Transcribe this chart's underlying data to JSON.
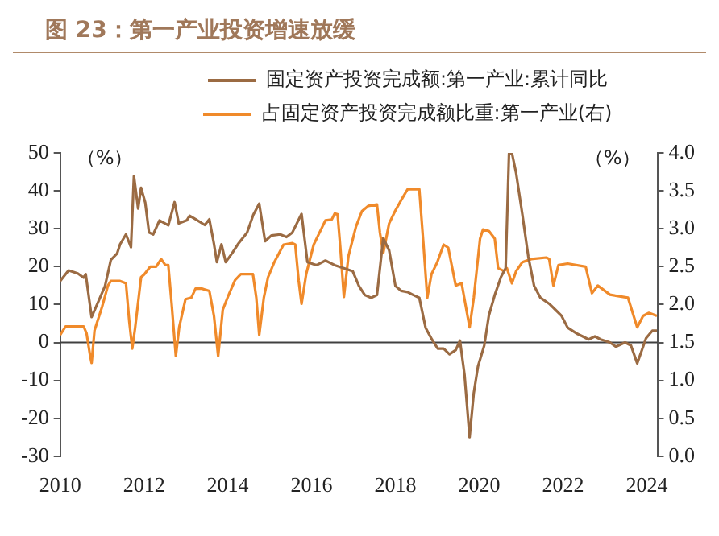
{
  "chart_data": {
    "type": "line",
    "title": "图 23：第一产业投资增速放缓",
    "ylabel": "（%）",
    "y2label": "（%）",
    "legend": "top",
    "grid": false,
    "marker": "none",
    "line_style": "solid",
    "xlim": [
      2010,
      2024.25
    ],
    "xticks": [
      2010,
      2012,
      2014,
      2016,
      2018,
      2020,
      2022,
      2024
    ],
    "ylim": [
      -30,
      50
    ],
    "yticks": [
      -30,
      -20,
      -10,
      0,
      10,
      20,
      30,
      40,
      50
    ],
    "y2lim": [
      0,
      4
    ],
    "y2ticks": [
      {
        "value": 0,
        "label": "0.0"
      },
      0.5,
      {
        "value": 1,
        "label": "1.0"
      },
      1.5,
      {
        "value": 2,
        "label": "2.0"
      },
      2.5,
      {
        "value": 3,
        "label": "3.0"
      },
      3.5,
      {
        "value": 4,
        "label": "4.0"
      }
    ],
    "ref_lines": [
      {
        "axis": "y",
        "value": 0,
        "color": "#404040"
      }
    ],
    "series": [
      {
        "name": "固定资产投资完成额:第一产业:累计同比",
        "color": "#9b6b43",
        "x": [
          2010.0,
          2010.2,
          2010.42,
          2010.56,
          2010.61,
          2010.75,
          2010.92,
          2011.07,
          2011.21,
          2011.36,
          2011.43,
          2011.57,
          2011.69,
          2011.76,
          2011.86,
          2011.93,
          2012.03,
          2012.12,
          2012.22,
          2012.37,
          2012.58,
          2012.73,
          2012.83,
          2013.02,
          2013.09,
          2013.23,
          2013.45,
          2013.56,
          2013.67,
          2013.74,
          2013.85,
          2013.95,
          2014.1,
          2014.24,
          2014.46,
          2014.61,
          2014.75,
          2014.89,
          2015.04,
          2015.25,
          2015.4,
          2015.54,
          2015.76,
          2015.9,
          2016.12,
          2016.33,
          2016.55,
          2016.77,
          2016.98,
          2017.13,
          2017.27,
          2017.42,
          2017.56,
          2017.71,
          2017.85,
          2018.0,
          2018.14,
          2018.29,
          2018.43,
          2018.57,
          2018.72,
          2018.87,
          2019.01,
          2019.15,
          2019.29,
          2019.44,
          2019.54,
          2019.65,
          2019.77,
          2019.87,
          2019.97,
          2020.12,
          2020.23,
          2020.37,
          2020.52,
          2020.63,
          2020.71,
          2020.78,
          2020.88,
          2021.03,
          2021.17,
          2021.31,
          2021.46,
          2021.67,
          2021.82,
          2021.96,
          2022.11,
          2022.32,
          2022.47,
          2022.61,
          2022.76,
          2022.9,
          2023.12,
          2023.26,
          2023.48,
          2023.62,
          2023.77,
          2023.87,
          2023.98,
          2024.13,
          2024.24
        ],
        "values": [
          16.2,
          19.0,
          18.2,
          17.1,
          18.0,
          6.7,
          11.0,
          14.9,
          21.8,
          23.5,
          25.9,
          28.5,
          25.1,
          43.9,
          35.3,
          40.8,
          36.9,
          29.0,
          28.5,
          32.2,
          30.9,
          37.0,
          31.4,
          32.2,
          33.4,
          32.5,
          31.0,
          32.5,
          26.0,
          21.2,
          25.9,
          21.2,
          23.5,
          25.9,
          29.0,
          33.7,
          36.6,
          26.7,
          28.2,
          28.5,
          27.8,
          29.0,
          33.9,
          21.2,
          20.4,
          21.6,
          20.4,
          19.6,
          18.8,
          14.9,
          12.5,
          11.8,
          12.5,
          27.5,
          24.3,
          14.9,
          13.6,
          13.3,
          12.5,
          11.8,
          3.9,
          0.8,
          -1.6,
          -1.6,
          -3.1,
          -2.0,
          0.5,
          -8.6,
          -25.0,
          -13.3,
          -6.3,
          -0.8,
          7.1,
          12.5,
          17.3,
          19.6,
          49.8,
          50,
          44.7,
          33.7,
          22.7,
          14.9,
          11.8,
          10.2,
          8.6,
          7.1,
          3.9,
          2.4,
          1.6,
          0.8,
          1.6,
          0.8,
          0,
          -1.1,
          0,
          -0.8,
          -5.5,
          -2.4,
          1.1,
          3.1,
          3.1
        ]
      },
      {
        "name": "占固定资产投资完成额比重:第一产业(右)",
        "color": "#f08a2a",
        "axis": "y2",
        "x": [
          2010.0,
          2010.13,
          2010.56,
          2010.63,
          2010.71,
          2010.75,
          2010.82,
          2011.0,
          2011.14,
          2011.21,
          2011.43,
          2011.57,
          2011.65,
          2011.72,
          2011.79,
          2011.93,
          2012.01,
          2012.15,
          2012.29,
          2012.41,
          2012.51,
          2012.58,
          2012.66,
          2012.76,
          2012.84,
          2012.99,
          2013.13,
          2013.23,
          2013.38,
          2013.56,
          2013.67,
          2013.77,
          2013.88,
          2014.0,
          2014.17,
          2014.31,
          2014.6,
          2014.68,
          2014.75,
          2014.86,
          2014.96,
          2015.11,
          2015.33,
          2015.54,
          2015.61,
          2015.69,
          2015.76,
          2015.87,
          2016.05,
          2016.19,
          2016.33,
          2016.48,
          2016.55,
          2016.62,
          2016.69,
          2016.77,
          2016.88,
          2017.06,
          2017.2,
          2017.35,
          2017.56,
          2017.63,
          2017.71,
          2017.85,
          2017.99,
          2018.14,
          2018.29,
          2018.57,
          2018.67,
          2018.76,
          2018.86,
          2019.0,
          2019.15,
          2019.26,
          2019.44,
          2019.58,
          2019.77,
          2019.87,
          2020.02,
          2020.09,
          2020.23,
          2020.37,
          2020.45,
          2020.59,
          2020.66,
          2020.78,
          2020.88,
          2021.03,
          2021.24,
          2021.6,
          2021.67,
          2021.77,
          2021.89,
          2022.11,
          2022.54,
          2022.69,
          2022.83,
          2023.12,
          2023.55,
          2023.77,
          2023.91,
          2024.05,
          2024.24
        ],
        "values": [
          1.6,
          1.71,
          1.71,
          1.62,
          1.34,
          1.23,
          1.66,
          1.97,
          2.25,
          2.31,
          2.31,
          2.28,
          1.77,
          1.42,
          1.7,
          2.36,
          2.4,
          2.5,
          2.5,
          2.6,
          2.52,
          2.52,
          2.01,
          1.32,
          1.7,
          2.07,
          2.09,
          2.21,
          2.21,
          2.18,
          1.85,
          1.32,
          1.93,
          2.1,
          2.32,
          2.4,
          2.4,
          2.09,
          1.6,
          2.09,
          2.36,
          2.56,
          2.79,
          2.81,
          2.79,
          2.32,
          2.01,
          2.4,
          2.79,
          2.95,
          3.11,
          3.12,
          3.2,
          3.19,
          2.72,
          2.1,
          2.64,
          3.03,
          3.23,
          3.3,
          3.32,
          2.95,
          2.68,
          3.07,
          3.23,
          3.38,
          3.52,
          3.52,
          2.79,
          2.09,
          2.4,
          2.56,
          2.79,
          2.75,
          2.25,
          2.28,
          1.7,
          2.09,
          2.87,
          2.99,
          2.97,
          2.87,
          2.48,
          2.44,
          2.48,
          2.28,
          2.44,
          2.56,
          2.6,
          2.62,
          2.6,
          2.25,
          2.52,
          2.54,
          2.5,
          2.15,
          2.25,
          2.13,
          2.09,
          1.7,
          1.85,
          1.89,
          1.85
        ]
      }
    ]
  }
}
